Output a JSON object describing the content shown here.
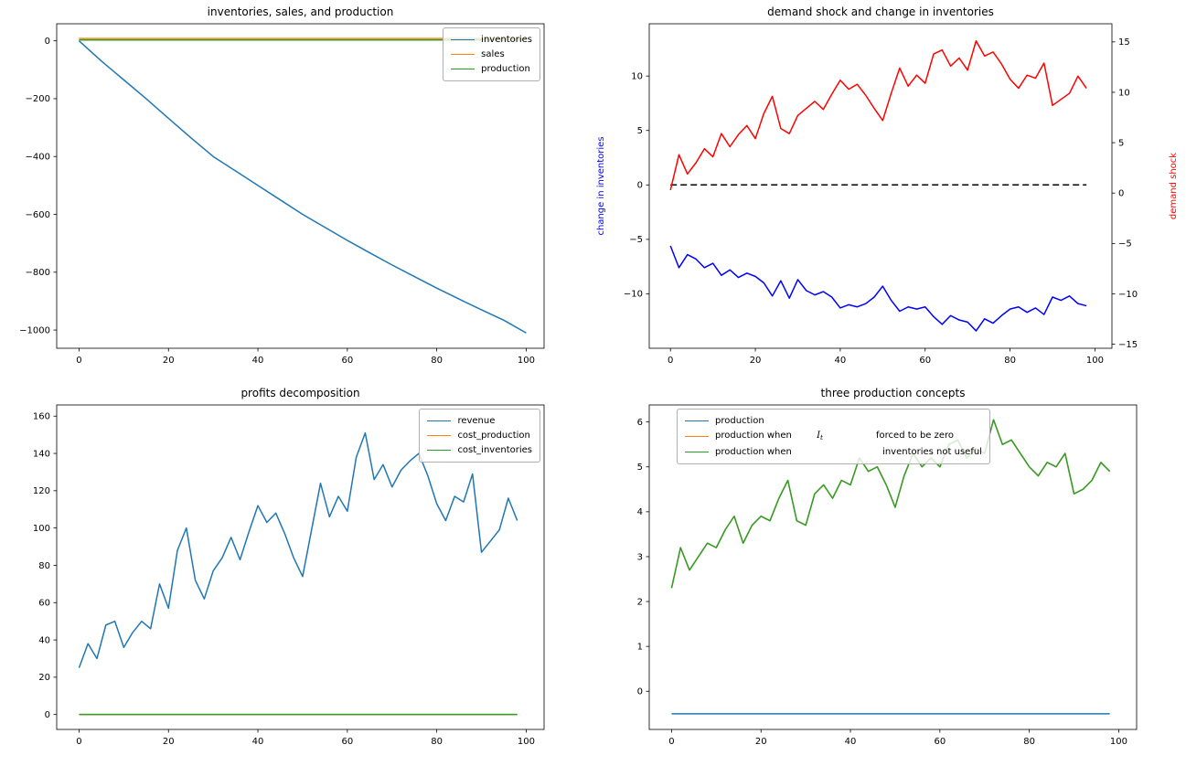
{
  "figure": {
    "background": "#ffffff"
  },
  "chart_data": [
    {
      "id": "inventories-sales-production",
      "type": "line",
      "title": "inventories, sales, and production",
      "xlim": [
        -5,
        104
      ],
      "ylim": [
        -1063,
        59
      ],
      "xticks": [
        0,
        20,
        40,
        60,
        80,
        100
      ],
      "yticks": [
        0,
        -200,
        -400,
        -600,
        -800,
        -1000
      ],
      "grid": false,
      "x": [
        0,
        5,
        10,
        15,
        20,
        25,
        30,
        35,
        40,
        45,
        50,
        55,
        60,
        65,
        70,
        75,
        80,
        85,
        90,
        95,
        100
      ],
      "series": [
        {
          "name": "inventories",
          "color": "#1f77b4",
          "values": [
            0,
            -70,
            -135,
            -200,
            -268,
            -335,
            -400,
            -450,
            -500,
            -550,
            -600,
            -645,
            -690,
            -733,
            -775,
            -815,
            -855,
            -893,
            -930,
            -966,
            -1010
          ]
        },
        {
          "name": "sales",
          "color": "#ff7f0e",
          "constant": 8
        },
        {
          "name": "production",
          "color": "#2ca02c",
          "constant": 3
        }
      ],
      "legend": {
        "position": "top-right",
        "entries": [
          {
            "color": "#1f77b4",
            "segments": [
              {
                "text": "inventories"
              }
            ]
          },
          {
            "color": "#ff7f0e",
            "segments": [
              {
                "text": "sales"
              }
            ]
          },
          {
            "color": "#2ca02c",
            "segments": [
              {
                "text": "production"
              }
            ]
          }
        ]
      }
    },
    {
      "id": "demand-shock-and-change-in-inventories",
      "type": "line",
      "title": "demand shock and change in inventories",
      "xlim": [
        -5,
        104
      ],
      "ylim": [
        -15,
        14.8
      ],
      "ylim_right": [
        -15.4,
        16.8
      ],
      "xticks": [
        0,
        20,
        40,
        60,
        80,
        100
      ],
      "yticks": [
        -10,
        -5,
        0,
        5,
        10
      ],
      "yticks_right": [
        -15,
        -10,
        -5,
        0,
        5,
        10,
        15
      ],
      "ylabel_left": {
        "text": "change in inventories",
        "color": "#0000ff"
      },
      "ylabel_right": {
        "text": "demand shock",
        "color": "#ff0000"
      },
      "grid": false,
      "x": [
        0,
        2,
        4,
        6,
        8,
        10,
        12,
        14,
        16,
        18,
        20,
        22,
        24,
        26,
        28,
        30,
        32,
        34,
        36,
        38,
        40,
        42,
        44,
        46,
        48,
        50,
        52,
        54,
        56,
        58,
        60,
        62,
        64,
        66,
        68,
        70,
        72,
        74,
        76,
        78,
        80,
        82,
        84,
        86,
        88,
        90,
        92,
        94,
        96,
        98
      ],
      "series": [
        {
          "name": "zero line",
          "color": "#000000",
          "dash": true,
          "constant": 0
        },
        {
          "name": "change in inventories",
          "color": "#0000ff",
          "values": [
            -5.6,
            -7.6,
            -6.4,
            -6.8,
            -7.6,
            -7.2,
            -8.3,
            -7.8,
            -8.5,
            -8.1,
            -8.4,
            -9.0,
            -10.2,
            -8.8,
            -10.4,
            -8.7,
            -9.7,
            -10.1,
            -9.8,
            -10.3,
            -11.3,
            -11.0,
            -11.2,
            -10.9,
            -10.3,
            -9.3,
            -10.6,
            -11.6,
            -11.2,
            -11.4,
            -11.2,
            -12.1,
            -12.8,
            -12.0,
            -12.4,
            -12.6,
            -13.4,
            -12.3,
            -12.7,
            -12.0,
            -11.4,
            -11.2,
            -11.7,
            -11.3,
            -11.9,
            -10.3,
            -10.6,
            -10.2,
            -10.9,
            -11.1
          ]
        },
        {
          "name": "demand shock",
          "color": "#ff0000",
          "axis": "right",
          "values": [
            0.3,
            3.8,
            1.9,
            3.0,
            4.4,
            3.6,
            5.9,
            4.6,
            5.8,
            6.7,
            5.4,
            7.9,
            9.6,
            6.4,
            5.9,
            7.7,
            8.4,
            9.1,
            8.3,
            9.8,
            11.2,
            10.3,
            10.8,
            9.7,
            8.4,
            7.2,
            9.9,
            12.4,
            10.6,
            11.7,
            10.9,
            13.8,
            14.2,
            12.6,
            13.4,
            12.2,
            15.1,
            13.6,
            14.0,
            12.8,
            11.3,
            10.4,
            11.7,
            11.4,
            12.9,
            8.7,
            9.3,
            9.9,
            11.6,
            10.4
          ]
        }
      ],
      "legend": null
    },
    {
      "id": "profits-decomposition",
      "type": "line",
      "title": "profits decomposition",
      "xlim": [
        -5,
        104
      ],
      "ylim": [
        -8,
        166
      ],
      "xticks": [
        0,
        20,
        40,
        60,
        80,
        100
      ],
      "yticks": [
        0,
        20,
        40,
        60,
        80,
        100,
        120,
        140,
        160
      ],
      "grid": false,
      "x": [
        0,
        2,
        4,
        6,
        8,
        10,
        12,
        14,
        16,
        18,
        20,
        22,
        24,
        26,
        28,
        30,
        32,
        34,
        36,
        38,
        40,
        42,
        44,
        46,
        48,
        50,
        52,
        54,
        56,
        58,
        60,
        62,
        64,
        66,
        68,
        70,
        72,
        74,
        76,
        78,
        80,
        82,
        84,
        86,
        88,
        90,
        92,
        94,
        96,
        98
      ],
      "series": [
        {
          "name": "revenue",
          "color": "#1f77b4",
          "values": [
            25,
            38,
            30,
            48,
            50,
            36,
            44,
            50,
            46,
            70,
            57,
            88,
            100,
            72,
            62,
            77,
            84,
            95,
            83,
            98,
            112,
            103,
            108,
            97,
            84,
            74,
            99,
            124,
            106,
            117,
            109,
            138,
            151,
            126,
            134,
            122,
            131,
            136,
            140,
            128,
            113,
            104,
            117,
            114,
            129,
            87,
            93,
            99,
            116,
            104
          ]
        },
        {
          "name": "cost_production",
          "color": "#ff7f0e",
          "constant": 0
        },
        {
          "name": "cost_inventories",
          "color": "#2ca02c",
          "constant": 0
        }
      ],
      "legend": {
        "position": "top-right",
        "entries": [
          {
            "color": "#1f77b4",
            "segments": [
              {
                "text": "revenue"
              }
            ]
          },
          {
            "color": "#ff7f0e",
            "segments": [
              {
                "text": "cost_production"
              }
            ]
          },
          {
            "color": "#2ca02c",
            "segments": [
              {
                "text": "cost_inventories"
              }
            ]
          }
        ]
      }
    },
    {
      "id": "three-production-concepts",
      "type": "line",
      "title": "three production concepts",
      "xlim": [
        -5,
        104
      ],
      "ylim": [
        -0.85,
        6.38
      ],
      "xticks": [
        0,
        20,
        40,
        60,
        80,
        100
      ],
      "yticks": [
        0,
        1,
        2,
        3,
        4,
        5,
        6
      ],
      "grid": false,
      "x": [
        0,
        2,
        4,
        6,
        8,
        10,
        12,
        14,
        16,
        18,
        20,
        22,
        24,
        26,
        28,
        30,
        32,
        34,
        36,
        38,
        40,
        42,
        44,
        46,
        48,
        50,
        52,
        54,
        56,
        58,
        60,
        62,
        64,
        66,
        68,
        70,
        72,
        74,
        76,
        78,
        80,
        82,
        84,
        86,
        88,
        90,
        92,
        94,
        96,
        98
      ],
      "series": [
        {
          "name": "production",
          "color": "#1f77b4",
          "constant": -0.5
        },
        {
          "name": "production when I_t forced to be zero",
          "color": "#ff7f0e",
          "values": [
            2.3,
            3.2,
            2.7,
            3.0,
            3.3,
            3.2,
            3.6,
            3.9,
            3.3,
            3.7,
            3.9,
            3.8,
            4.3,
            4.7,
            3.8,
            3.7,
            4.4,
            4.6,
            4.3,
            4.7,
            4.6,
            5.2,
            4.9,
            5.0,
            4.6,
            4.1,
            4.8,
            5.3,
            5.0,
            5.2,
            5.0,
            5.5,
            5.6,
            5.2,
            5.4,
            5.3,
            6.05,
            5.5,
            5.6,
            5.3,
            5.0,
            4.8,
            5.1,
            5.0,
            5.3,
            4.4,
            4.5,
            4.7,
            5.1,
            4.9
          ]
        },
        {
          "name": "production when inventories not useful",
          "color": "#2ca02c",
          "values": [
            2.3,
            3.2,
            2.7,
            3.0,
            3.3,
            3.2,
            3.6,
            3.9,
            3.3,
            3.7,
            3.9,
            3.8,
            4.3,
            4.7,
            3.8,
            3.7,
            4.4,
            4.6,
            4.3,
            4.7,
            4.6,
            5.2,
            4.9,
            5.0,
            4.6,
            4.1,
            4.8,
            5.3,
            5.0,
            5.2,
            5.0,
            5.5,
            5.6,
            5.2,
            5.4,
            5.3,
            6.05,
            5.5,
            5.6,
            5.3,
            5.0,
            4.8,
            5.1,
            5.0,
            5.3,
            4.4,
            4.5,
            4.7,
            5.1,
            4.9
          ]
        }
      ],
      "legend": {
        "position": "top-left-wide",
        "entries": [
          {
            "color": "#1f77b4",
            "segments": [
              {
                "text": "production"
              }
            ]
          },
          {
            "color": "#ff7f0e",
            "segments": [
              {
                "text": "production when "
              },
              {
                "text": "I",
                "style": "italic",
                "gap": 24
              },
              {
                "text": "t",
                "style": "sub"
              },
              {
                "text": "forced to be zero",
                "gap": 58
              }
            ]
          },
          {
            "color": "#2ca02c",
            "segments": [
              {
                "text": "production when "
              },
              {
                "text": "inventories not useful",
                "gap": 96
              }
            ]
          }
        ]
      }
    }
  ]
}
